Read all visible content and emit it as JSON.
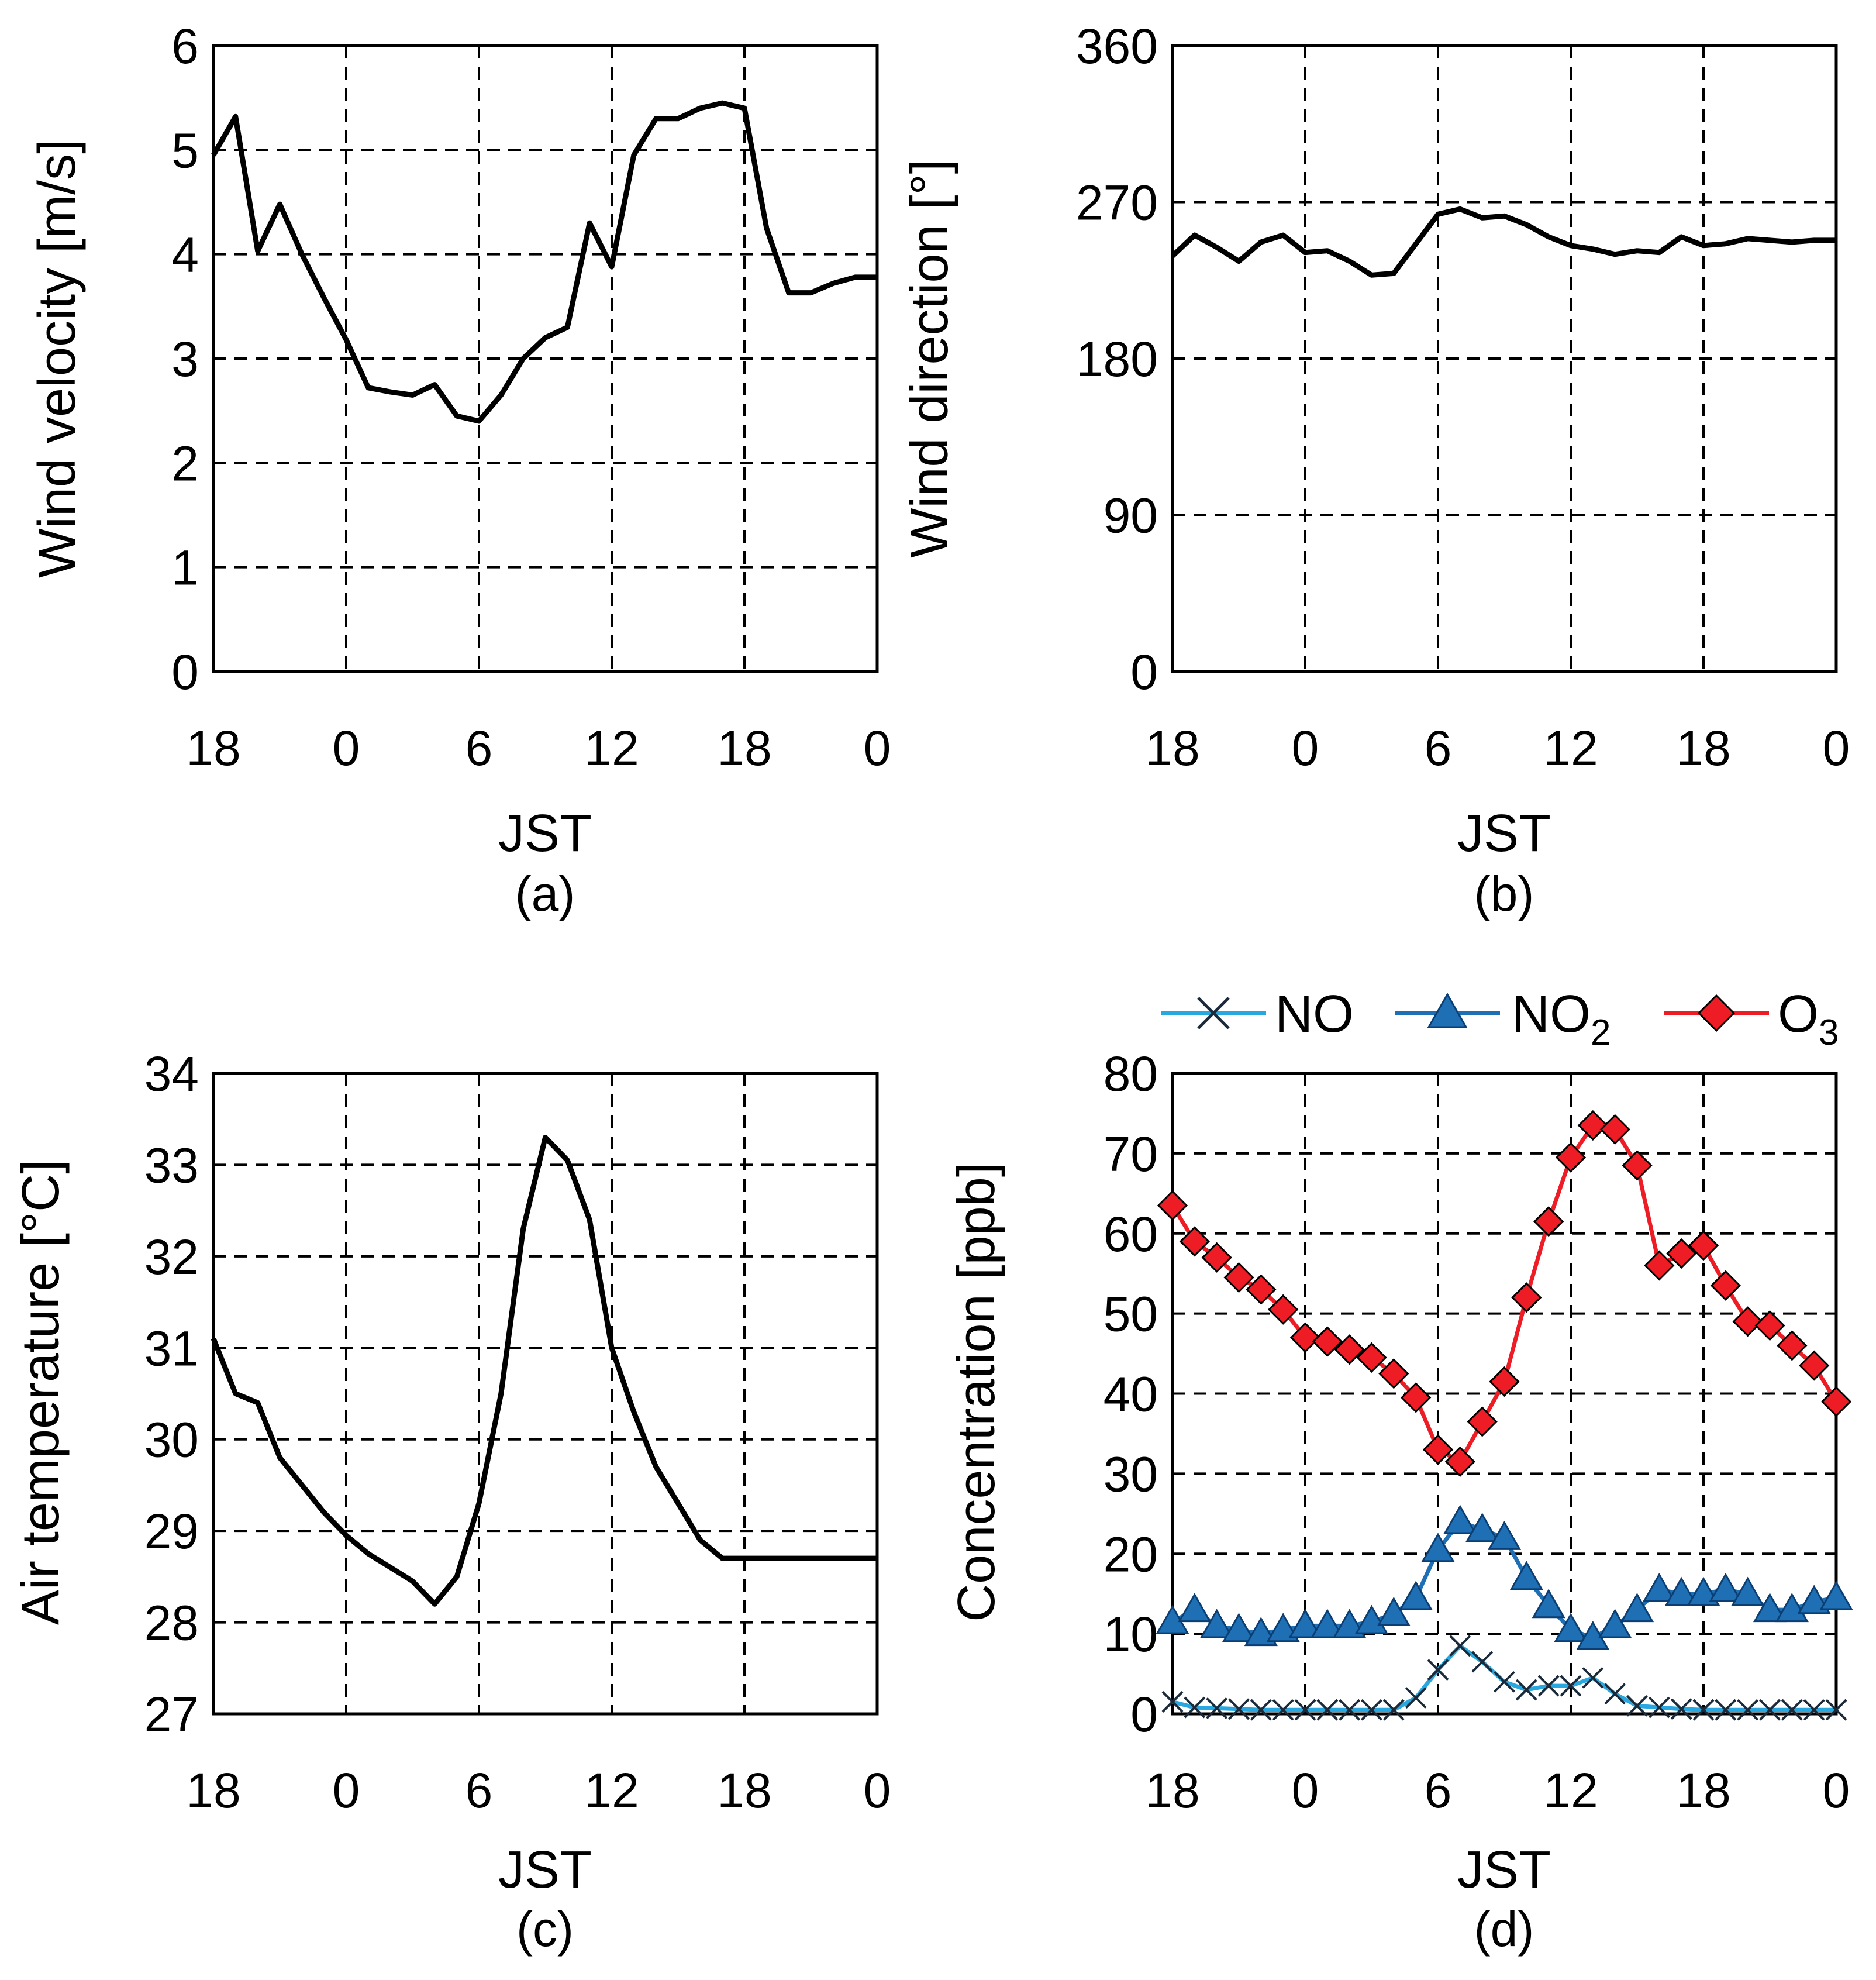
{
  "chart_data": [
    {
      "id": "a",
      "type": "line",
      "caption": "(a)",
      "xlabel": "JST",
      "ylabel": "Wind velocity [m/s]",
      "x_tick_labels": [
        "18",
        "0",
        "6",
        "12",
        "18",
        "0"
      ],
      "y_tick_labels": [
        "0",
        "1",
        "2",
        "3",
        "4",
        "5",
        "6"
      ],
      "xlim": [
        0,
        30
      ],
      "ylim": [
        0,
        6
      ],
      "grid": true,
      "series": [
        {
          "name": "Wind velocity",
          "color": "#000000",
          "x": [
            0,
            1,
            2,
            3,
            4,
            5,
            6,
            7,
            8,
            9,
            10,
            11,
            12,
            13,
            14,
            15,
            16,
            17,
            18,
            19,
            20,
            21,
            22,
            23,
            24,
            25,
            26,
            27,
            28,
            29,
            30
          ],
          "values": [
            4.95,
            5.32,
            4.03,
            4.48,
            4.0,
            3.58,
            3.18,
            2.72,
            2.68,
            2.65,
            2.75,
            2.45,
            2.4,
            2.65,
            3.0,
            3.2,
            3.3,
            4.3,
            3.88,
            4.95,
            5.3,
            5.3,
            5.4,
            5.45,
            5.4,
            4.25,
            3.63,
            3.63,
            3.72,
            3.78,
            3.78
          ]
        }
      ]
    },
    {
      "id": "b",
      "type": "line",
      "caption": "(b)",
      "xlabel": "JST",
      "ylabel": "Wind direction [°]",
      "x_tick_labels": [
        "18",
        "0",
        "6",
        "12",
        "18",
        "0"
      ],
      "y_tick_labels": [
        "0",
        "90",
        "180",
        "270",
        "360"
      ],
      "xlim": [
        0,
        30
      ],
      "ylim": [
        0,
        360
      ],
      "grid": true,
      "series": [
        {
          "name": "Wind direction",
          "color": "#000000",
          "x": [
            0,
            1,
            2,
            3,
            4,
            5,
            6,
            7,
            8,
            9,
            10,
            11,
            12,
            13,
            14,
            15,
            16,
            17,
            18,
            19,
            20,
            21,
            22,
            23,
            24,
            25,
            26,
            27,
            28,
            29,
            30
          ],
          "values": [
            239,
            251,
            244,
            236,
            247,
            251,
            241,
            242,
            236,
            228,
            229,
            246,
            263,
            266,
            261,
            262,
            257,
            250,
            245,
            243,
            240,
            242,
            241,
            250,
            245,
            246,
            249,
            248,
            247,
            248,
            248
          ]
        }
      ]
    },
    {
      "id": "c",
      "type": "line",
      "caption": "(c)",
      "xlabel": "JST",
      "ylabel": "Air temperature [°C]",
      "x_tick_labels": [
        "18",
        "0",
        "6",
        "12",
        "18",
        "0"
      ],
      "y_tick_labels": [
        "27",
        "28",
        "29",
        "30",
        "31",
        "32",
        "33",
        "34"
      ],
      "xlim": [
        0,
        30
      ],
      "ylim": [
        27,
        34
      ],
      "grid": true,
      "series": [
        {
          "name": "Air temperature",
          "color": "#000000",
          "x": [
            0,
            1,
            2,
            3,
            4,
            5,
            6,
            7,
            8,
            9,
            10,
            11,
            12,
            13,
            14,
            15,
            16,
            17,
            18,
            19,
            20,
            21,
            22,
            23,
            24,
            25,
            26,
            27,
            28,
            29,
            30
          ],
          "values": [
            31.1,
            30.5,
            30.4,
            29.8,
            29.5,
            29.2,
            28.95,
            28.75,
            28.6,
            28.45,
            28.2,
            28.5,
            29.3,
            30.5,
            32.3,
            33.3,
            33.05,
            32.4,
            31.0,
            30.3,
            29.7,
            29.3,
            28.9,
            28.7,
            28.7,
            28.7,
            28.7,
            28.7,
            28.7,
            28.7,
            28.7
          ]
        }
      ]
    },
    {
      "id": "d",
      "type": "line",
      "caption": "(d)",
      "xlabel": "JST",
      "ylabel": "Concentration [ppb]",
      "x_tick_labels": [
        "18",
        "0",
        "6",
        "12",
        "18",
        "0"
      ],
      "y_tick_labels": [
        "0",
        "10",
        "20",
        "30",
        "40",
        "50",
        "60",
        "70",
        "80"
      ],
      "xlim": [
        0,
        30
      ],
      "ylim": [
        0,
        80
      ],
      "grid": true,
      "legend_position": "top",
      "legend": [
        {
          "name": "NO",
          "sub": ""
        },
        {
          "name": "NO",
          "sub": "2"
        },
        {
          "name": "O",
          "sub": "3"
        }
      ],
      "series": [
        {
          "name": "NO",
          "color": "#29a8e0",
          "marker": "x",
          "x": [
            0,
            1,
            2,
            3,
            4,
            5,
            6,
            7,
            8,
            9,
            10,
            11,
            12,
            13,
            14,
            15,
            16,
            17,
            18,
            19,
            20,
            21,
            22,
            23,
            24,
            25,
            26,
            27,
            28,
            29,
            30
          ],
          "values": [
            1.5,
            0.8,
            0.7,
            0.6,
            0.5,
            0.5,
            0.5,
            0.5,
            0.5,
            0.5,
            0.5,
            2.0,
            5.5,
            8.5,
            6.5,
            4.0,
            3.0,
            3.5,
            3.5,
            4.5,
            2.5,
            1.0,
            0.8,
            0.6,
            0.5,
            0.5,
            0.5,
            0.5,
            0.5,
            0.5,
            0.5
          ]
        },
        {
          "name": "NO2",
          "color": "#1f6fb5",
          "marker": "triangle",
          "x": [
            0,
            1,
            2,
            3,
            4,
            5,
            6,
            7,
            8,
            9,
            10,
            11,
            12,
            13,
            14,
            15,
            16,
            17,
            18,
            19,
            20,
            21,
            22,
            23,
            24,
            25,
            26,
            27,
            28,
            29,
            30
          ],
          "values": [
            11.5,
            13.0,
            11.0,
            10.5,
            10.0,
            10.5,
            11.0,
            11.0,
            11.0,
            11.5,
            12.5,
            14.5,
            20.5,
            24.0,
            23.0,
            22.0,
            17.0,
            13.5,
            10.5,
            9.5,
            11.0,
            13.0,
            15.5,
            15.0,
            15.0,
            15.5,
            15.0,
            13.0,
            13.0,
            14.0,
            14.5
          ]
        },
        {
          "name": "O3",
          "color": "#ee1c24",
          "marker": "diamond",
          "x": [
            0,
            1,
            2,
            3,
            4,
            5,
            6,
            7,
            8,
            9,
            10,
            11,
            12,
            13,
            14,
            15,
            16,
            17,
            18,
            19,
            20,
            21,
            22,
            23,
            24,
            25,
            26,
            27,
            28,
            29,
            30
          ],
          "values": [
            63.5,
            59.0,
            57.0,
            54.5,
            53.0,
            50.5,
            47.0,
            46.5,
            45.5,
            44.5,
            42.5,
            39.5,
            33.0,
            31.5,
            36.5,
            41.5,
            52.0,
            61.5,
            69.5,
            73.5,
            73.0,
            68.5,
            56.0,
            57.5,
            58.5,
            53.5,
            49.0,
            48.5,
            46.0,
            43.5,
            39.0
          ]
        }
      ]
    }
  ]
}
